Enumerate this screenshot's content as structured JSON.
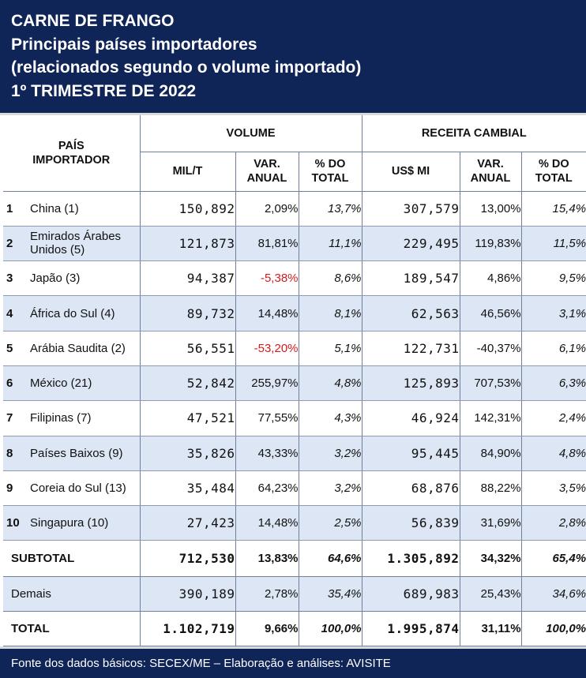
{
  "title": {
    "line1": "CARNE DE FRANGO",
    "line2": "Principais países importadores",
    "line3": "(relacionados segundo o volume importado)",
    "line4": "1º TRIMESTRE DE 2022"
  },
  "headers": {
    "country": "PAÍS IMPORTADOR",
    "volume": "VOLUME",
    "revenue": "RECEITA CAMBIAL",
    "mil_t": "MIL/T",
    "var_annual": "VAR. ANUAL",
    "pct_total": "% DO TOTAL",
    "usd_mi": "US$ MI",
    "var_annual2": "VAR. ANUAL",
    "pct_total2": "% DO TOTAL"
  },
  "rows": [
    {
      "rank": "1",
      "country": "China (1)",
      "volume": "150,892",
      "vol_var": "2,09%",
      "vol_share": "13,7%",
      "revenue": "307,579",
      "rev_var": "13,00%",
      "rev_share": "15,4%"
    },
    {
      "rank": "2",
      "country": "Emirados Árabes Unidos  (5)",
      "volume": "121,873",
      "vol_var": "81,81%",
      "vol_share": "11,1%",
      "revenue": "229,495",
      "rev_var": "119,83%",
      "rev_share": "11,5%"
    },
    {
      "rank": "3",
      "country": "Japão (3)",
      "volume": "94,387",
      "vol_var": "-5,38%",
      "vol_share": "8,6%",
      "revenue": "189,547",
      "rev_var": "4,86%",
      "rev_share": "9,5%"
    },
    {
      "rank": "4",
      "country": "África do Sul (4)",
      "volume": "89,732",
      "vol_var": "14,48%",
      "vol_share": "8,1%",
      "revenue": "62,563",
      "rev_var": "46,56%",
      "rev_share": "3,1%"
    },
    {
      "rank": "5",
      "country": "Arábia Saudita (2)",
      "volume": "56,551",
      "vol_var": "-53,20%",
      "vol_share": "5,1%",
      "revenue": "122,731",
      "rev_var": "-40,37%",
      "rev_share": "6,1%"
    },
    {
      "rank": "6",
      "country": "México (21)",
      "volume": "52,842",
      "vol_var": "255,97%",
      "vol_share": "4,8%",
      "revenue": "125,893",
      "rev_var": "707,53%",
      "rev_share": "6,3%"
    },
    {
      "rank": "7",
      "country": "Filipinas (7)",
      "volume": "47,521",
      "vol_var": "77,55%",
      "vol_share": "4,3%",
      "revenue": "46,924",
      "rev_var": "142,31%",
      "rev_share": "2,4%"
    },
    {
      "rank": "8",
      "country": "Países Baixos (9)",
      "volume": "35,826",
      "vol_var": "43,33%",
      "vol_share": "3,2%",
      "revenue": "95,445",
      "rev_var": "84,90%",
      "rev_share": "4,8%"
    },
    {
      "rank": "9",
      "country": "Coreia do Sul (13)",
      "volume": "35,484",
      "vol_var": "64,23%",
      "vol_share": "3,2%",
      "revenue": "68,876",
      "rev_var": "88,22%",
      "rev_share": "3,5%"
    },
    {
      "rank": "10",
      "country": "Singapura (10)",
      "volume": "27,423",
      "vol_var": "14,48%",
      "vol_share": "2,5%",
      "revenue": "56,839",
      "rev_var": "31,69%",
      "rev_share": "2,8%"
    }
  ],
  "subtotal": {
    "label": "SUBTOTAL",
    "volume": "712,530",
    "vol_var": "13,83%",
    "vol_share": "64,6%",
    "revenue": "1.305,892",
    "rev_var": "34,32%",
    "rev_share": "65,4%"
  },
  "others": {
    "label": "Demais",
    "volume": "390,189",
    "vol_var": "2,78%",
    "vol_share": "35,4%",
    "revenue": "689,983",
    "rev_var": "25,43%",
    "rev_share": "34,6%"
  },
  "total": {
    "label": "TOTAL",
    "volume": "1.102,719",
    "vol_var": "9,66%",
    "vol_share": "100,0%",
    "revenue": "1.995,874",
    "rev_var": "31,11%",
    "rev_share": "100,0%"
  },
  "footer": "Fonte dos dados básicos: SECEX/ME – Elaboração e análises: AVISITE",
  "colors": {
    "header_bg": "#0f2457",
    "alt_row": "#dce6f4",
    "negative": "#d01c1c"
  }
}
